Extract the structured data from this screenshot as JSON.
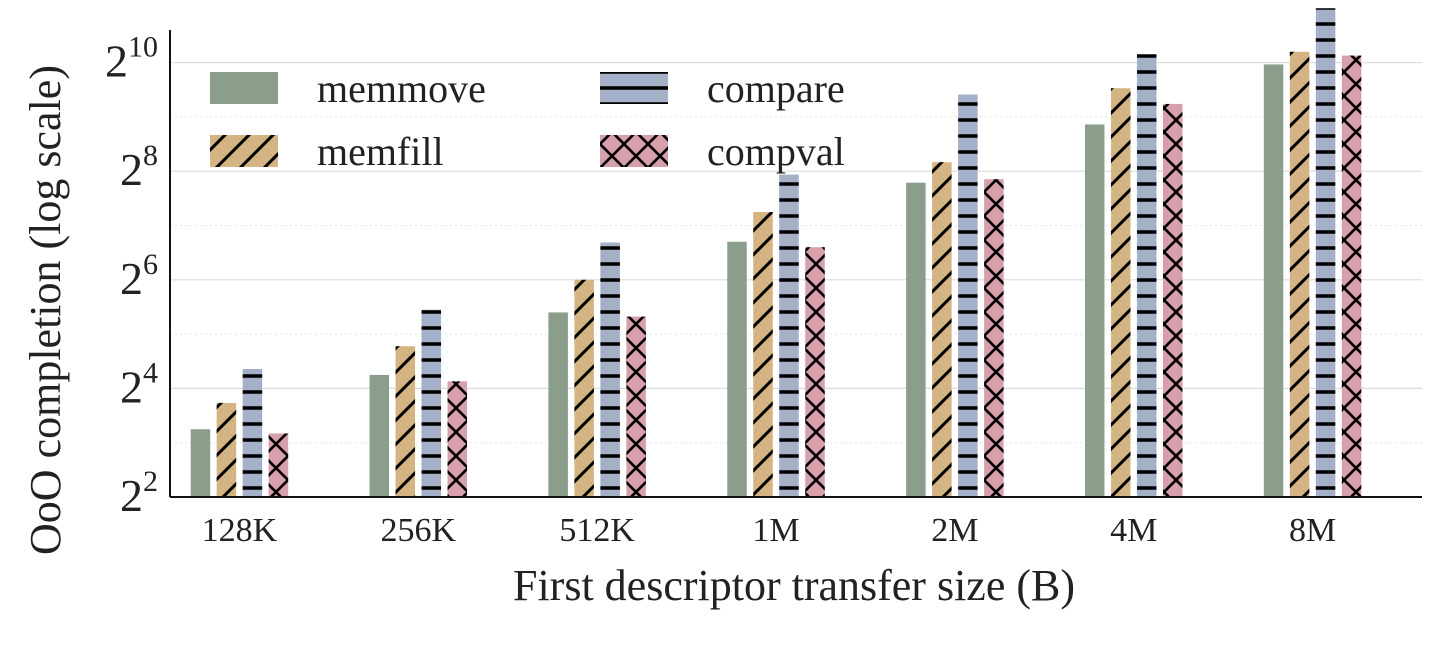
{
  "chart_data": {
    "type": "bar",
    "ylabel": "OoO completion (log scale)",
    "xlabel": "First descriptor transfer size (B)",
    "yscale": "log2",
    "ylim_exponent": [
      2,
      10.6
    ],
    "yticks": [
      {
        "base": "2",
        "exp": "2",
        "exp_value": 2
      },
      {
        "base": "2",
        "exp": "4",
        "exp_value": 4
      },
      {
        "base": "2",
        "exp": "6",
        "exp_value": 6
      },
      {
        "base": "2",
        "exp": "8",
        "exp_value": 8
      },
      {
        "base": "2",
        "exp": "10",
        "exp_value": 10
      }
    ],
    "categories": [
      "128K",
      "256K",
      "512K",
      "1M",
      "2M",
      "4M",
      "8M"
    ],
    "grid": "horizontal major and minor",
    "legend_position": "top-left, two columns",
    "series": [
      {
        "name": "memmove",
        "color": "#8b9e8b",
        "pattern": "solid",
        "values": [
          9.5,
          19.0,
          42.2,
          104,
          221,
          465,
          1000
        ]
      },
      {
        "name": "memfill",
        "color": "#d4b483",
        "pattern": "diagonal-hatch",
        "values": [
          13.3,
          27.4,
          64.0,
          152,
          287,
          738,
          1175
        ]
      },
      {
        "name": "compare",
        "color": "#a3b0c8",
        "pattern": "horizontal-hatch",
        "values": [
          20.5,
          43.7,
          103,
          245,
          681,
          1140,
          2048
        ]
      },
      {
        "name": "compval",
        "color": "#d69fab",
        "pattern": "cross-hatch",
        "values": [
          9.0,
          17.5,
          40.0,
          97.0,
          231,
          604,
          1120
        ]
      }
    ]
  }
}
